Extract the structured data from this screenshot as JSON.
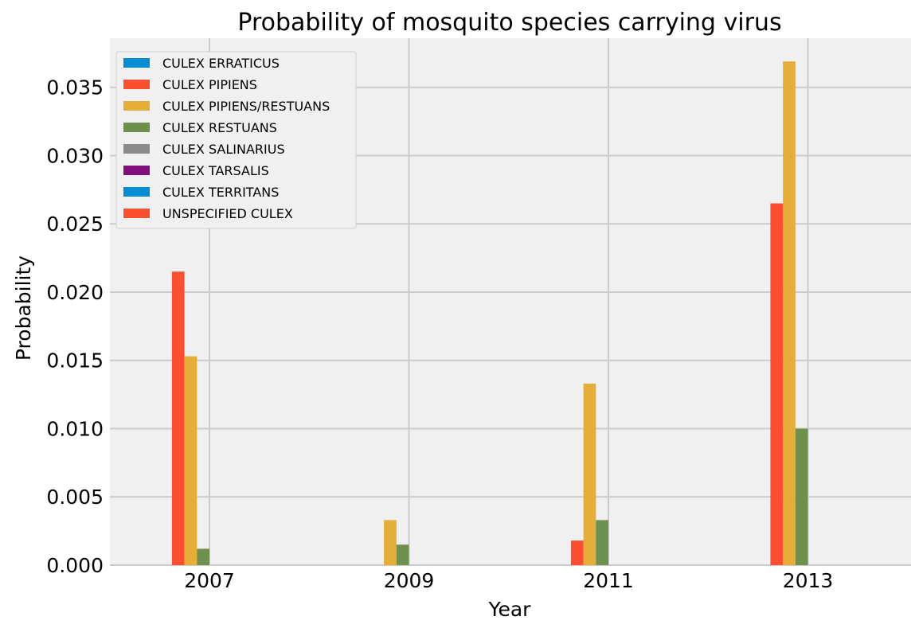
{
  "chart_data": {
    "type": "bar",
    "title": "Probability of mosquito species carrying virus",
    "xlabel": "Year",
    "ylabel": "Probability",
    "categories": [
      "2007",
      "2009",
      "2011",
      "2013"
    ],
    "ylim": [
      0,
      0.0386
    ],
    "yticks": [
      "0.000",
      "0.005",
      "0.010",
      "0.015",
      "0.020",
      "0.025",
      "0.030",
      "0.035"
    ],
    "grid": true,
    "legend_position": "top-left",
    "background": "#f0f0f0",
    "series": [
      {
        "name": "CULEX ERRATICUS",
        "color": "#008fd5",
        "values": [
          0,
          0,
          0,
          0
        ]
      },
      {
        "name": "CULEX PIPIENS",
        "color": "#fc4f30",
        "values": [
          0.0215,
          0,
          0.0018,
          0.0265
        ]
      },
      {
        "name": "CULEX PIPIENS/RESTUANS",
        "color": "#e5ae38",
        "values": [
          0.0153,
          0.0033,
          0.0133,
          0.0369
        ]
      },
      {
        "name": "CULEX RESTUANS",
        "color": "#6d904f",
        "values": [
          0.0012,
          0.0015,
          0.0033,
          0.01
        ]
      },
      {
        "name": "CULEX SALINARIUS",
        "color": "#8b8b8b",
        "values": [
          0,
          0,
          0,
          0
        ]
      },
      {
        "name": "CULEX TARSALIS",
        "color": "#810f7c",
        "values": [
          0,
          0,
          0,
          0
        ]
      },
      {
        "name": "CULEX TERRITANS",
        "color": "#008fd5",
        "values": [
          0,
          0,
          0,
          0
        ]
      },
      {
        "name": "UNSPECIFIED CULEX",
        "color": "#fc4f30",
        "values": [
          0,
          0,
          0,
          0
        ]
      }
    ]
  }
}
